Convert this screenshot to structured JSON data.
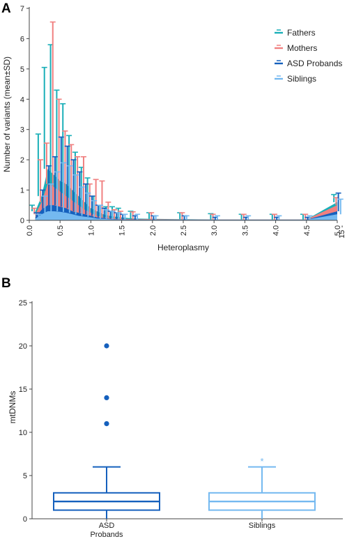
{
  "chart_data": [
    {
      "panel": "A",
      "type": "area",
      "xlabel": "Heteroplasmy",
      "ylabel": "Number of variants (mean±SD)",
      "xlim": [
        0,
        5.0
      ],
      "ylim": [
        0,
        7
      ],
      "x_ticks": [
        "0.0",
        "0.5",
        "1.0",
        "1.5",
        "2.0",
        "2.5",
        "3.0",
        "3.5",
        "4.0",
        "4.5",
        "5.0"
      ],
      "x_tick_extra": "15 -",
      "y_ticks": [
        "0",
        "1",
        "2",
        "3",
        "4",
        "5",
        "6",
        "7"
      ],
      "legend_position": "top-right",
      "series": [
        {
          "name": "Fathers",
          "color": "#1AAFB8",
          "x": [
            0.1,
            0.2,
            0.3,
            0.4,
            0.5,
            0.6,
            0.7,
            0.8,
            0.9,
            1.0,
            1.1,
            1.2,
            1.3,
            1.4,
            1.5,
            1.7,
            2.0,
            2.5,
            3.0,
            3.5,
            4.0,
            4.5,
            5.0
          ],
          "mean": [
            0.3,
            0.8,
            1.7,
            1.5,
            1.3,
            1.2,
            1.0,
            0.8,
            0.6,
            0.4,
            0.3,
            0.2,
            0.15,
            0.12,
            0.1,
            0.06,
            0.05,
            0.04,
            0.03,
            0.03,
            0.03,
            0.03,
            0.6
          ],
          "sd_upper": [
            0.5,
            2.85,
            5.05,
            5.8,
            4.3,
            3.85,
            2.8,
            2.25,
            1.75,
            1.4,
            0.8,
            0.5,
            0.45,
            0.45,
            0.4,
            0.3,
            0.25,
            0.25,
            0.22,
            0.2,
            0.2,
            0.2,
            0.85
          ]
        },
        {
          "name": "Mothers",
          "color": "#F08080",
          "x": [
            0.1,
            0.2,
            0.3,
            0.4,
            0.5,
            0.6,
            0.7,
            0.8,
            0.9,
            1.0,
            1.1,
            1.2,
            1.3,
            1.4,
            1.5,
            1.7,
            2.0,
            2.5,
            3.0,
            3.5,
            4.0,
            4.5,
            5.0
          ],
          "mean": [
            0.2,
            0.6,
            1.2,
            1.1,
            0.95,
            0.8,
            0.65,
            0.5,
            0.35,
            0.25,
            0.15,
            0.1,
            0.08,
            0.06,
            0.05,
            0.04,
            0.04,
            0.03,
            0.03,
            0.03,
            0.03,
            0.03,
            0.5
          ],
          "sd_upper": [
            0.4,
            2.0,
            2.55,
            6.55,
            4.0,
            2.95,
            2.5,
            2.1,
            2.1,
            1.2,
            1.35,
            1.3,
            0.6,
            0.35,
            0.3,
            0.28,
            0.25,
            0.25,
            0.2,
            0.2,
            0.2,
            0.2,
            0.75
          ]
        },
        {
          "name": "ASD Probands",
          "color": "#1560BD",
          "x": [
            0.1,
            0.2,
            0.3,
            0.4,
            0.5,
            0.6,
            0.7,
            0.8,
            0.9,
            1.0,
            1.1,
            1.2,
            1.3,
            1.4,
            1.5,
            1.7,
            2.0,
            2.5,
            3.0,
            3.5,
            4.0,
            4.5,
            5.0
          ],
          "mean": [
            0.1,
            0.35,
            0.5,
            0.5,
            0.45,
            0.4,
            0.3,
            0.25,
            0.2,
            0.15,
            0.1,
            0.08,
            0.05,
            0.04,
            0.03,
            0.03,
            0.02,
            0.02,
            0.02,
            0.02,
            0.02,
            0.02,
            0.3
          ],
          "sd_upper": [
            0.25,
            1.0,
            1.8,
            2.1,
            2.75,
            2.45,
            2.0,
            1.6,
            1.2,
            0.8,
            0.5,
            0.4,
            0.3,
            0.25,
            0.2,
            0.15,
            0.15,
            0.15,
            0.1,
            0.1,
            0.1,
            0.1,
            0.9
          ]
        },
        {
          "name": "Siblings",
          "color": "#74B9F0",
          "x": [
            0.1,
            0.2,
            0.3,
            0.4,
            0.5,
            0.6,
            0.7,
            0.8,
            0.9,
            1.0,
            1.1,
            1.2,
            1.3,
            1.4,
            1.5,
            1.7,
            2.0,
            2.5,
            3.0,
            3.5,
            4.0,
            4.5,
            5.0
          ],
          "mean": [
            0.05,
            0.2,
            0.3,
            0.3,
            0.28,
            0.25,
            0.2,
            0.15,
            0.12,
            0.1,
            0.06,
            0.05,
            0.04,
            0.03,
            0.02,
            0.02,
            0.02,
            0.02,
            0.02,
            0.02,
            0.02,
            0.02,
            0.2
          ],
          "sd_upper": [
            0.2,
            0.8,
            1.2,
            1.6,
            1.9,
            1.8,
            1.5,
            1.1,
            0.9,
            0.65,
            0.5,
            0.35,
            0.3,
            0.25,
            0.2,
            0.2,
            0.15,
            0.15,
            0.15,
            0.15,
            0.15,
            0.15,
            0.7
          ]
        }
      ]
    },
    {
      "panel": "B",
      "type": "box",
      "ylabel": "mtDNMs",
      "ylim": [
        0,
        25
      ],
      "y_ticks": [
        "0",
        "5",
        "10",
        "15",
        "20",
        "25"
      ],
      "categories": [
        "ASD\nProbands",
        "Siblings"
      ],
      "series": [
        {
          "category": "ASD\nProbands",
          "color": "#1560BD",
          "min": 0,
          "q1": 1,
          "median": 2,
          "q3": 3,
          "max": 6,
          "outliers": [
            11,
            14,
            20
          ],
          "outlier_marker": "dot"
        },
        {
          "category": "Siblings",
          "color": "#74B9F0",
          "min": 0,
          "q1": 1,
          "median": 2,
          "q3": 3,
          "max": 6,
          "outliers": [
            7
          ],
          "outlier_marker": "*"
        }
      ]
    }
  ],
  "panel_labels": {
    "a": "A",
    "b": "B"
  }
}
